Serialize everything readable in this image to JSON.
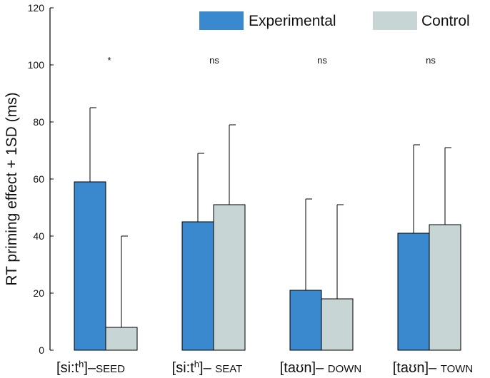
{
  "chart_data": {
    "type": "bar",
    "title": "",
    "xlabel": "",
    "ylabel": "RT priming effect + 1SD (ms)",
    "ylim": [
      0,
      120
    ],
    "yticks": [
      0,
      20,
      40,
      60,
      80,
      100,
      120
    ],
    "grid": false,
    "legend_position": "top-right",
    "categories": [
      {
        "ipa": "[si:t",
        "sup": "h",
        "close": "]",
        "dash": "–",
        "word": "SEED"
      },
      {
        "ipa": "[si:t",
        "sup": "h",
        "close": "]",
        "dash": "– ",
        "word": "SEAT"
      },
      {
        "ipa": "[taʊn]",
        "sup": "",
        "close": "",
        "dash": "– ",
        "word": "DOWN"
      },
      {
        "ipa": "[taʊn]",
        "sup": "",
        "close": "",
        "dash": "– ",
        "word": "TOWN"
      }
    ],
    "series": [
      {
        "name": "Experimental",
        "color": "#3a88cd",
        "values": [
          59,
          45,
          21,
          41
        ],
        "sd": [
          26,
          24,
          32,
          31
        ]
      },
      {
        "name": "Control",
        "color": "#c8d5d5",
        "values": [
          8,
          51,
          18,
          44
        ],
        "sd": [
          32,
          28,
          33,
          27
        ]
      }
    ],
    "significance": [
      "*",
      "ns",
      "ns",
      "ns"
    ],
    "significance_y": 100
  }
}
